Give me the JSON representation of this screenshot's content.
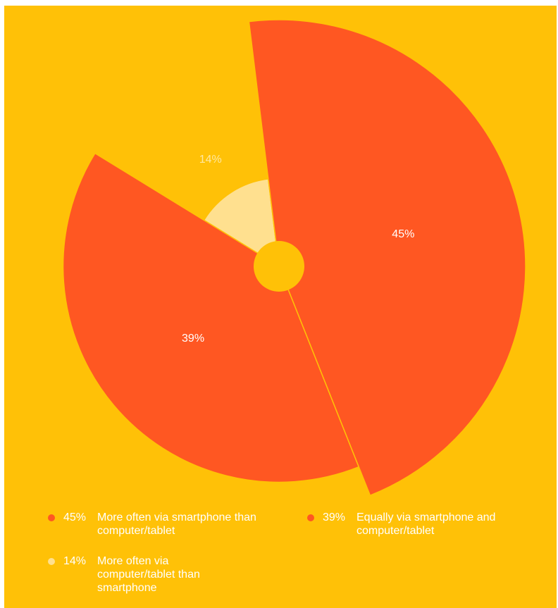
{
  "colors": {
    "background": "#FFC107",
    "accent": "#FF5722",
    "light": "#FFE08F",
    "text": "#FFFFFF"
  },
  "chart_data": {
    "type": "pie",
    "variant": "variable-radius pie (polar area)",
    "slices": [
      {
        "label": "More often via smartphone than computer/tablet",
        "value": 45,
        "value_label": "45%",
        "color": "#FF5722"
      },
      {
        "label": "Equally via smartphone and computer/tablet",
        "value": 39,
        "value_label": "39%",
        "color": "#FF5722"
      },
      {
        "label": "More often via computer/tablet than smartphone",
        "value": 14,
        "value_label": "14%",
        "color": "#FFE08F"
      }
    ],
    "legend": {
      "placement": "bottom",
      "items": [
        {
          "value": "45%",
          "text": "More often via smartphone than computer/tablet",
          "color": "#FF5722"
        },
        {
          "value": "39%",
          "text": "Equally via smartphone and computer/tablet",
          "color": "#FF5722"
        },
        {
          "value": "14%",
          "text": "More often via computer/tablet than smartphone",
          "color": "#FFE08F"
        }
      ]
    }
  }
}
